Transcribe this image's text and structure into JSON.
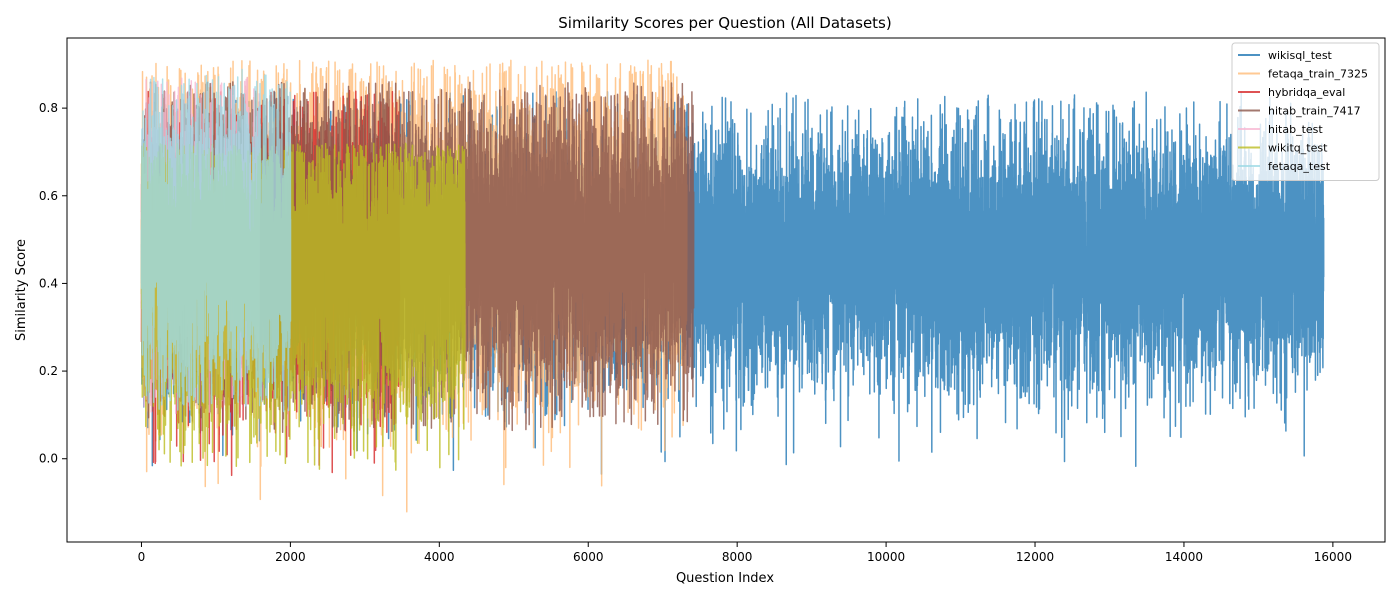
{
  "chart_data": {
    "type": "line",
    "title": "Similarity Scores per Question (All Datasets)",
    "xlabel": "Question Index",
    "ylabel": "Similarity Score",
    "xlim": [
      -1000,
      16700
    ],
    "ylim": [
      -0.19,
      0.96
    ],
    "xticks": [
      0,
      2000,
      4000,
      6000,
      8000,
      10000,
      12000,
      14000,
      16000
    ],
    "yticks": [
      0.0,
      0.2,
      0.4,
      0.6,
      0.8
    ],
    "grid": false,
    "legend_position": "top-right",
    "series": [
      {
        "name": "wikisql_test",
        "color": "#1f77b4",
        "opacity": 0.8,
        "n": 15878,
        "mean": 0.46,
        "spread": 0.085,
        "min": -0.04,
        "max": 0.84
      },
      {
        "name": "fetaqa_train_7325",
        "color": "#ffbb78",
        "opacity": 0.8,
        "n": 7325,
        "mean": 0.5,
        "spread": 0.11,
        "min": -0.14,
        "max": 0.91
      },
      {
        "name": "hybridqa_eval",
        "color": "#d62728",
        "opacity": 0.8,
        "n": 3466,
        "mean": 0.45,
        "spread": 0.1,
        "min": -0.04,
        "max": 0.84
      },
      {
        "name": "hitab_train_7417",
        "color": "#8c564b",
        "opacity": 0.8,
        "n": 7417,
        "mean": 0.48,
        "spread": 0.1,
        "min": 0.06,
        "max": 0.86
      },
      {
        "name": "hitab_test",
        "color": "#f7b6d2",
        "opacity": 0.8,
        "n": 1584,
        "mean": 0.48,
        "spread": 0.1,
        "min": 0.1,
        "max": 0.87
      },
      {
        "name": "wikitq_test",
        "color": "#bcbd22",
        "opacity": 0.8,
        "n": 4344,
        "mean": 0.42,
        "spread": 0.1,
        "min": -0.03,
        "max": 0.72
      },
      {
        "name": "fetaqa_test",
        "color": "#9edae5",
        "opacity": 0.8,
        "n": 2003,
        "mean": 0.5,
        "spread": 0.1,
        "min": 0.1,
        "max": 0.89
      }
    ]
  }
}
